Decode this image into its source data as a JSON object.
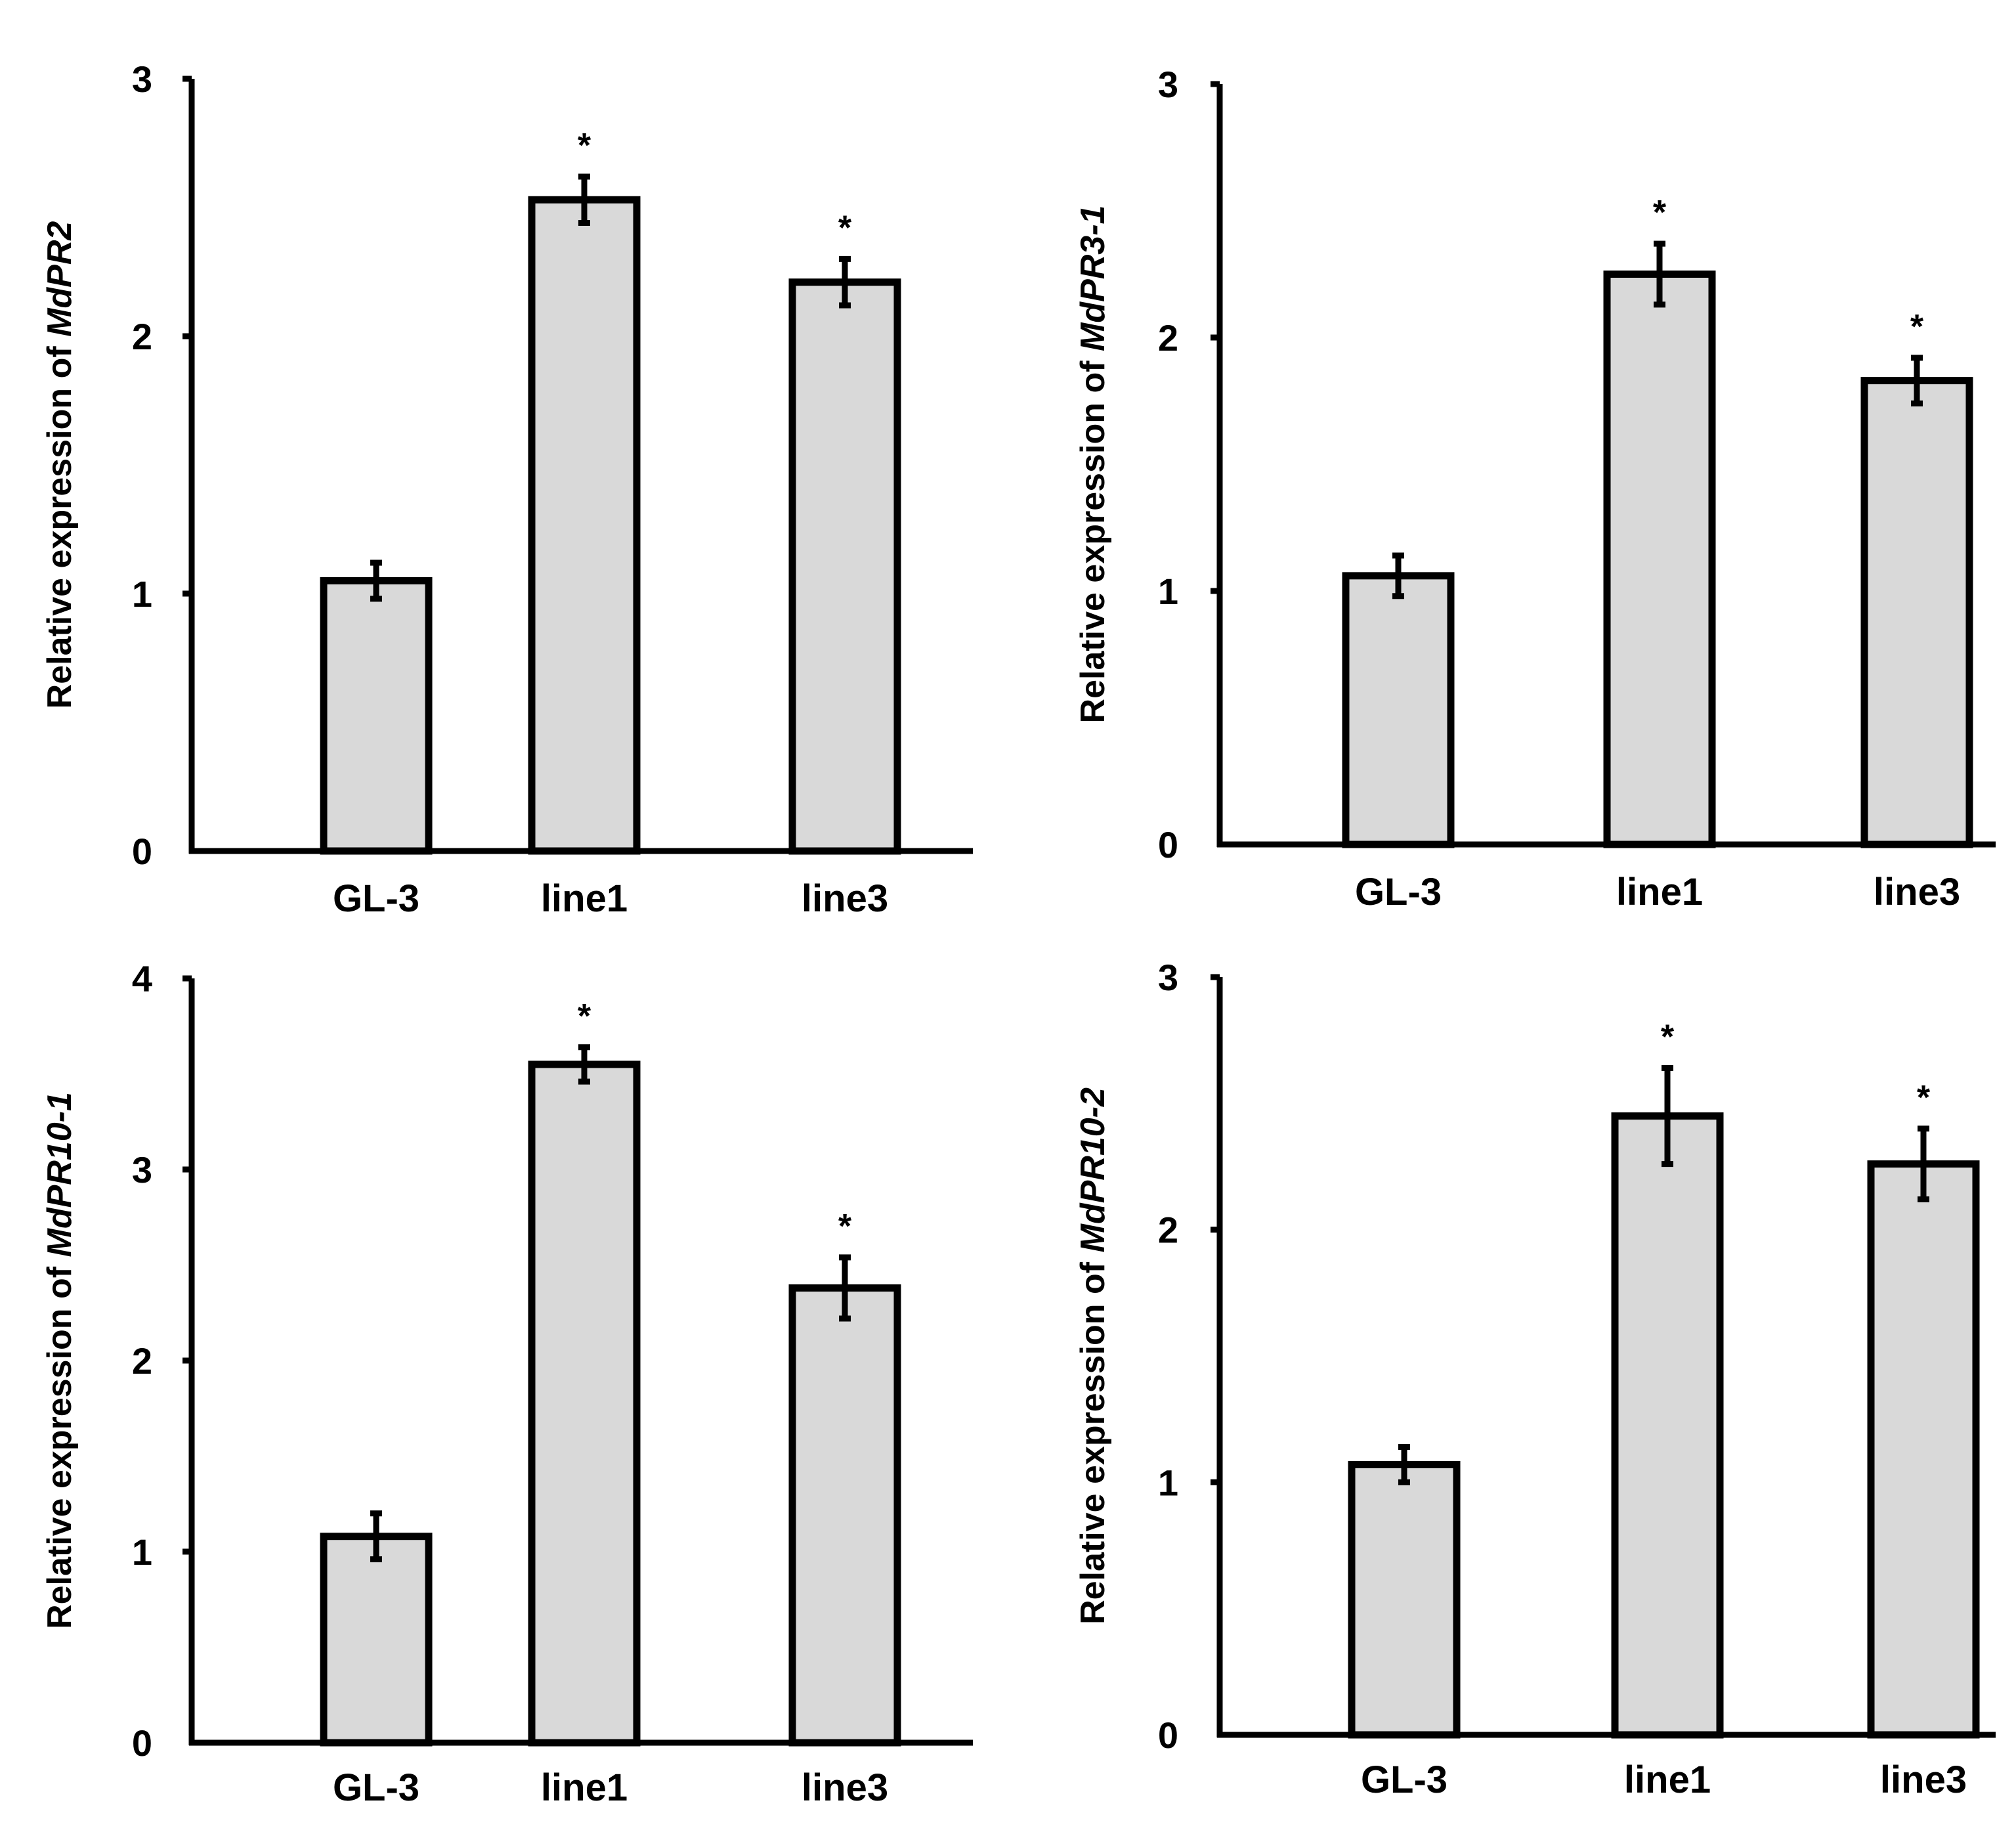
{
  "chart_data": [
    {
      "type": "bar",
      "ylabel_prefix": "Relative expression of ",
      "ylabel_gene": "MdPR2",
      "categories": [
        "GL-3",
        "line1",
        "line3"
      ],
      "values": [
        1.05,
        2.53,
        2.21
      ],
      "errors": [
        0.07,
        0.09,
        0.09
      ],
      "significance": [
        "",
        "*",
        "*"
      ],
      "ylim": [
        0,
        3
      ],
      "yticks": [
        "0",
        "1",
        "2",
        "3"
      ]
    },
    {
      "type": "bar",
      "ylabel_prefix": "Relative expression of ",
      "ylabel_gene": "MdPR3-1",
      "categories": [
        "GL-3",
        "line1",
        "line3"
      ],
      "values": [
        1.06,
        2.25,
        1.83
      ],
      "errors": [
        0.08,
        0.12,
        0.09
      ],
      "significance": [
        "",
        "*",
        "*"
      ],
      "ylim": [
        0,
        3
      ],
      "yticks": [
        "0",
        "1",
        "2",
        "3"
      ]
    },
    {
      "type": "bar",
      "ylabel_prefix": "Relative expression of ",
      "ylabel_gene": "MdPR10-1",
      "categories": [
        "GL-3",
        "line1",
        "line3"
      ],
      "values": [
        1.08,
        3.55,
        2.38
      ],
      "errors": [
        0.12,
        0.09,
        0.16
      ],
      "significance": [
        "",
        "*",
        "*"
      ],
      "ylim": [
        0,
        4
      ],
      "yticks": [
        "0",
        "1",
        "2",
        "3",
        "4"
      ]
    },
    {
      "type": "bar",
      "ylabel_prefix": "Relative expression of ",
      "ylabel_gene": "MdPR10-2",
      "categories": [
        "GL-3",
        "line1",
        "line3"
      ],
      "values": [
        1.07,
        2.45,
        2.26
      ],
      "errors": [
        0.07,
        0.19,
        0.14
      ],
      "significance": [
        "",
        "*",
        "*"
      ],
      "ylim": [
        0,
        3
      ],
      "yticks": [
        "0",
        "1",
        "2",
        "3"
      ]
    }
  ]
}
